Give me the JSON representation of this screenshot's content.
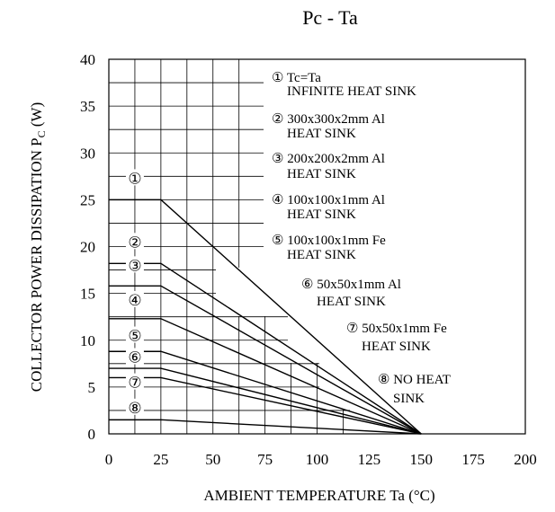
{
  "chart_data": {
    "type": "line",
    "title": "Pc - Ta",
    "xlabel": "AMBIENT TEMPERATURE Ta (°C)",
    "ylabel_main": "COLLECTOR POWER DISSIPATION P",
    "ylabel_sub": "C",
    "ylabel_unit": " (W)",
    "xlim": [
      0,
      200
    ],
    "ylim": [
      0,
      40
    ],
    "x_ticks": [
      "0",
      "25",
      "50",
      "75",
      "100",
      "125",
      "150",
      "175",
      "200"
    ],
    "y_ticks": [
      "0",
      "5",
      "10",
      "15",
      "20",
      "25",
      "30",
      "35",
      "40"
    ],
    "grid": true,
    "legend_position": "top-right",
    "series": [
      {
        "marker": "①",
        "legend_line1": "Tc=Ta",
        "legend_line2": "INFINITE HEAT SINK",
        "x": [
          0,
          25,
          150
        ],
        "y": [
          25,
          25,
          0
        ],
        "marker_y": 27.3
      },
      {
        "marker": "②",
        "legend_line1": "300x300x2mm Al",
        "legend_line2": "HEAT SINK",
        "x": [
          0,
          25,
          150
        ],
        "y": [
          18.2,
          18.2,
          0
        ],
        "marker_y": 20.5
      },
      {
        "marker": "③",
        "legend_line1": "200x200x2mm Al",
        "legend_line2": "HEAT SINK",
        "x": [
          0,
          25,
          150
        ],
        "y": [
          15.8,
          15.8,
          0
        ],
        "marker_y": 18.0
      },
      {
        "marker": "④",
        "legend_line1": "100x100x1mm Al",
        "legend_line2": "HEAT SINK",
        "x": [
          0,
          25,
          150
        ],
        "y": [
          12.3,
          12.3,
          0
        ],
        "marker_y": 14.3
      },
      {
        "marker": "⑤",
        "legend_line1": "100x100x1mm Fe",
        "legend_line2": "HEAT SINK",
        "x": [
          0,
          25,
          150
        ],
        "y": [
          8.8,
          8.8,
          0
        ],
        "marker_y": 10.5
      },
      {
        "marker": "⑥",
        "legend_line1": "50x50x1mm Al",
        "legend_line2": "HEAT SINK",
        "x": [
          0,
          25,
          150
        ],
        "y": [
          7.0,
          7.0,
          0
        ],
        "marker_y": 8.2
      },
      {
        "marker": "⑦",
        "legend_line1": "50x50x1mm Fe",
        "legend_line2": "HEAT SINK",
        "x": [
          0,
          25,
          150
        ],
        "y": [
          6.0,
          6.0,
          0
        ],
        "marker_y": 5.5
      },
      {
        "marker": "⑧",
        "legend_line1": "NO HEAT",
        "legend_line2": "SINK",
        "x": [
          0,
          25,
          150
        ],
        "y": [
          1.5,
          1.5,
          0
        ],
        "marker_y": 2.8
      }
    ]
  }
}
